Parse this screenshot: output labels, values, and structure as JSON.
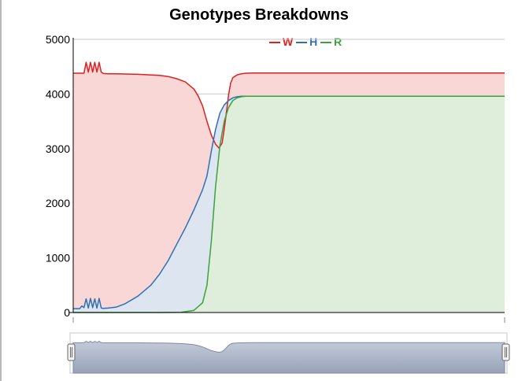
{
  "chart_data": {
    "type": "area",
    "title": "Genotypes Breakdowns",
    "xlabel": "",
    "ylabel": "",
    "ylim": [
      0,
      5000
    ],
    "yticks": [
      0,
      1000,
      2000,
      3000,
      4000,
      5000
    ],
    "ytick_labels": [
      "0",
      "1000",
      "2000",
      "3000",
      "4000",
      "5000"
    ],
    "grid": true,
    "legend_position": "top-right",
    "x_index_range": [
      0,
      100
    ],
    "series": [
      {
        "name": "W",
        "color": "#e0201e",
        "fill": "#f9d7d7",
        "x": [
          0,
          1.5,
          2.5,
          3,
          3.5,
          4,
          4.5,
          5,
          5.5,
          6,
          6.5,
          7,
          8,
          10,
          15,
          20,
          22,
          24,
          26,
          28,
          29,
          30,
          31,
          32,
          33,
          33.8,
          34.5,
          35,
          35.5,
          36,
          36.5,
          37,
          38,
          39,
          40,
          42,
          45,
          50,
          60,
          70,
          80,
          90,
          100
        ],
        "values": [
          4380,
          4380,
          4380,
          4580,
          4400,
          4580,
          4400,
          4580,
          4400,
          4580,
          4400,
          4375,
          4370,
          4370,
          4360,
          4340,
          4320,
          4280,
          4220,
          4090,
          3960,
          3780,
          3500,
          3250,
          3080,
          3010,
          3100,
          3350,
          3650,
          3980,
          4200,
          4300,
          4350,
          4370,
          4380,
          4385,
          4385,
          4385,
          4385,
          4385,
          4385,
          4385,
          4385
        ]
      },
      {
        "name": "H",
        "color": "#3070b0",
        "fill": "#dde6f0",
        "x": [
          0,
          1.5,
          2,
          2.5,
          3,
          3.5,
          4,
          4.5,
          5,
          5.5,
          6,
          6.5,
          7,
          8,
          10,
          12,
          15,
          18,
          20,
          22,
          24,
          26,
          28,
          30,
          31,
          32,
          33,
          34,
          35,
          36,
          37,
          38,
          39,
          40,
          42,
          45,
          50,
          60,
          70,
          80,
          90,
          100
        ],
        "values": [
          70,
          70,
          120,
          90,
          250,
          80,
          260,
          90,
          250,
          80,
          260,
          80,
          75,
          80,
          100,
          160,
          300,
          500,
          700,
          950,
          1250,
          1550,
          1880,
          2250,
          2500,
          2950,
          3350,
          3650,
          3800,
          3880,
          3930,
          3950,
          3960,
          3960,
          3960,
          3960,
          3960,
          3960,
          3960,
          3960,
          3960,
          3960
        ]
      },
      {
        "name": "R",
        "color": "#3aa33a",
        "fill": "#deeedb",
        "x": [
          0,
          20,
          25,
          28,
          30,
          31,
          32,
          33,
          34,
          35,
          36,
          37,
          38,
          39,
          40,
          42,
          45,
          50,
          60,
          70,
          80,
          90,
          100
        ],
        "values": [
          0,
          0,
          5,
          40,
          180,
          500,
          1300,
          2300,
          3050,
          3500,
          3750,
          3880,
          3930,
          3950,
          3960,
          3960,
          3960,
          3960,
          3960,
          3960,
          3960,
          3960,
          3960
        ]
      }
    ]
  }
}
